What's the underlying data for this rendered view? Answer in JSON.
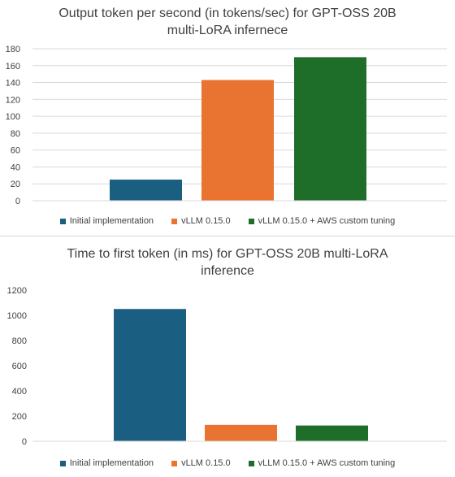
{
  "chart_data": [
    {
      "type": "bar",
      "title": "Output token per second (in tokens/sec) for GPT-OSS 20B\nmulti-LoRA infernece",
      "categories": [
        ""
      ],
      "series": [
        {
          "name": "Initial implementation",
          "values": [
            25
          ],
          "color": "#1a5e82"
        },
        {
          "name": "vLLM 0.15.0",
          "values": [
            143
          ],
          "color": "#e97431"
        },
        {
          "name": "vLLM 0.15.0 + AWS custom tuning",
          "values": [
            170
          ],
          "color": "#1e6e2a"
        }
      ],
      "ylim": [
        0,
        180
      ],
      "yticks": [
        0,
        20,
        40,
        60,
        80,
        100,
        120,
        140,
        160,
        180
      ],
      "grid": true,
      "legend": "bottom"
    },
    {
      "type": "bar",
      "title": "Time to first token (in ms) for GPT-OSS 20B multi-LoRA\ninference",
      "categories": [
        ""
      ],
      "series": [
        {
          "name": "Initial implementation",
          "values": [
            1050
          ],
          "color": "#1a5e82"
        },
        {
          "name": "vLLM 0.15.0",
          "values": [
            130
          ],
          "color": "#e97431"
        },
        {
          "name": "vLLM 0.15.0 + AWS custom tuning",
          "values": [
            125
          ],
          "color": "#1e6e2a"
        }
      ],
      "ylim": [
        0,
        1200
      ],
      "yticks": [
        0,
        200,
        400,
        600,
        800,
        1000,
        1200
      ],
      "grid": false,
      "legend": "bottom"
    }
  ]
}
